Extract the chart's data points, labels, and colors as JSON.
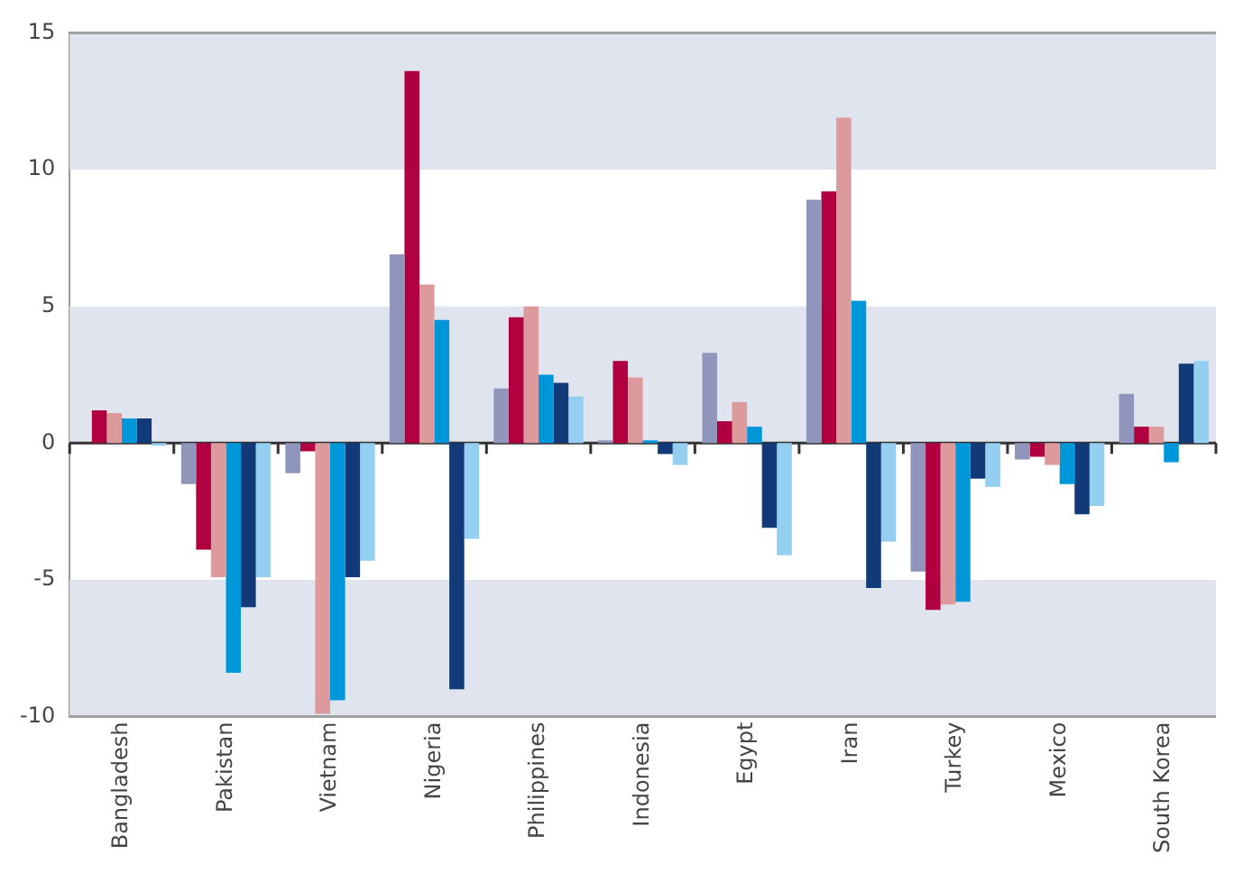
{
  "chart_data": {
    "type": "bar",
    "categories": [
      "Bangladesh",
      "Pakistan",
      "Vietnam",
      "Nigeria",
      "Philippines",
      "Indonesia",
      "Egypt",
      "Iran",
      "Turkey",
      "Mexico",
      "South Korea"
    ],
    "series": [
      {
        "color": "#8f95bb",
        "values": [
          0,
          -1.5,
          -1.1,
          6.9,
          2,
          0.1,
          3.3,
          8.9,
          -4.7,
          -0.6,
          1.8
        ]
      },
      {
        "color": "#b00040",
        "values": [
          1.2,
          -3.9,
          -0.3,
          13.6,
          4.6,
          3,
          0.8,
          9.2,
          -6.1,
          -0.5,
          0.6
        ]
      },
      {
        "color": "#dd9a9c",
        "values": [
          1.1,
          -4.9,
          -9.9,
          5.8,
          5,
          2.4,
          1.5,
          11.9,
          -5.9,
          -0.8,
          0.6
        ]
      },
      {
        "color": "#0097da",
        "values": [
          0.9,
          -8.4,
          -9.4,
          4.5,
          2.5,
          0.1,
          0.6,
          5.2,
          -5.8,
          -1.5,
          -0.7
        ]
      },
      {
        "color": "#123a78",
        "values": [
          0.9,
          -6,
          -4.9,
          -9,
          2.2,
          -0.4,
          -3.1,
          -5.3,
          -1.3,
          -2.6,
          2.9
        ]
      },
      {
        "color": "#94cff1",
        "values": [
          -0.1,
          -4.9,
          -4.3,
          -3.5,
          1.7,
          -0.8,
          -4.1,
          -3.6,
          -1.6,
          -2.3,
          3
        ]
      }
    ],
    "ylim": [
      -10,
      15
    ],
    "yticks": [
      -10,
      -5,
      0,
      5,
      10,
      15
    ],
    "bands": [
      {
        "axis": "y",
        "from": 10,
        "to": 15,
        "color": "#dfe4ee"
      },
      {
        "axis": "y",
        "from": 0,
        "to": 5,
        "color": "#dfe4ee"
      },
      {
        "axis": "y",
        "from": -10,
        "to": -5,
        "color": "#dfe4ee"
      }
    ]
  }
}
